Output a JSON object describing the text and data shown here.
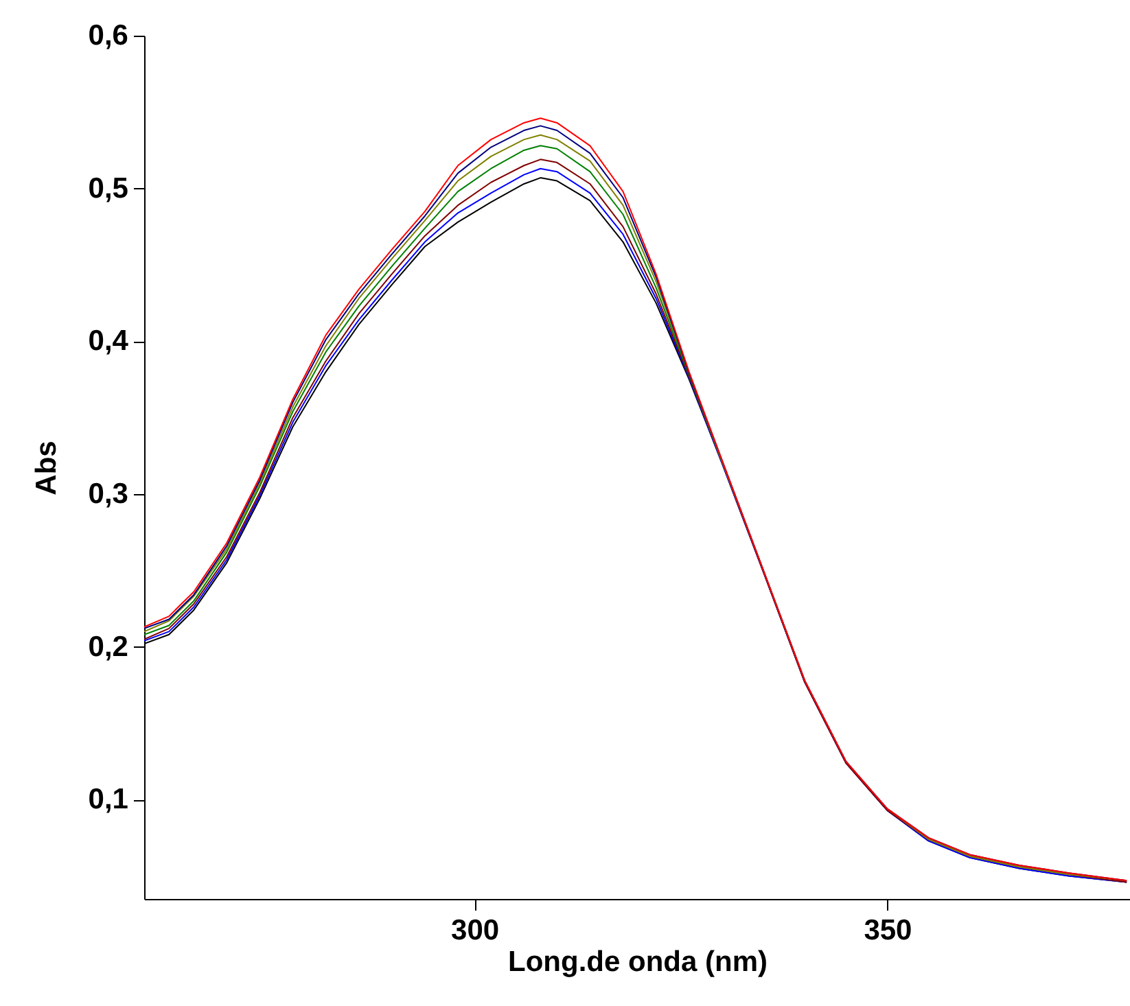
{
  "chart_data": {
    "type": "line",
    "xlabel": "Long.de onda (nm)",
    "ylabel": "Abs",
    "xlim": [
      260,
      379.4
    ],
    "ylim": [
      0.035,
      0.6
    ],
    "xticks": [
      300,
      350
    ],
    "yticks": [
      {
        "value": 0.1,
        "label": "0,1"
      },
      {
        "value": 0.2,
        "label": "0,2"
      },
      {
        "value": 0.3,
        "label": "0,3"
      },
      {
        "value": 0.4,
        "label": "0,4"
      },
      {
        "value": 0.5,
        "label": "0,5"
      },
      {
        "value": 0.6,
        "label": "0,6"
      }
    ],
    "x": [
      260,
      263,
      266,
      270,
      274,
      278,
      282,
      286,
      290,
      294,
      298,
      302,
      306,
      308,
      310,
      314,
      318,
      322,
      326,
      330,
      335,
      340,
      345,
      350,
      355,
      360,
      366,
      372,
      379
    ],
    "series": [
      {
        "color": "#000000",
        "values": [
          0.202,
          0.208,
          0.224,
          0.255,
          0.297,
          0.344,
          0.38,
          0.411,
          0.437,
          0.462,
          0.478,
          0.491,
          0.503,
          0.507,
          0.505,
          0.492,
          0.465,
          0.425,
          0.375,
          0.32,
          0.249,
          0.177,
          0.124,
          0.093,
          0.073,
          0.062,
          0.055,
          0.05,
          0.046
        ]
      },
      {
        "color": "#0000ff",
        "values": [
          0.204,
          0.21,
          0.226,
          0.257,
          0.299,
          0.347,
          0.384,
          0.414,
          0.44,
          0.465,
          0.484,
          0.497,
          0.509,
          0.513,
          0.511,
          0.497,
          0.47,
          0.428,
          0.376,
          0.32,
          0.249,
          0.177,
          0.124,
          0.093,
          0.073,
          0.062,
          0.055,
          0.05,
          0.046
        ]
      },
      {
        "color": "#800000",
        "values": [
          0.205,
          0.212,
          0.228,
          0.259,
          0.301,
          0.35,
          0.387,
          0.418,
          0.444,
          0.469,
          0.489,
          0.504,
          0.515,
          0.519,
          0.517,
          0.503,
          0.475,
          0.431,
          0.377,
          0.321,
          0.249,
          0.177,
          0.124,
          0.093,
          0.074,
          0.063,
          0.056,
          0.051,
          0.046
        ]
      },
      {
        "color": "#008000",
        "values": [
          0.208,
          0.214,
          0.23,
          0.262,
          0.305,
          0.354,
          0.393,
          0.423,
          0.449,
          0.474,
          0.498,
          0.513,
          0.525,
          0.528,
          0.526,
          0.511,
          0.483,
          0.435,
          0.378,
          0.321,
          null,
          null,
          null,
          null,
          null,
          null,
          null,
          null,
          null
        ]
      },
      {
        "color": "#808000",
        "values": [
          0.21,
          0.217,
          0.233,
          0.264,
          0.307,
          0.357,
          0.397,
          0.428,
          0.454,
          0.479,
          0.505,
          0.521,
          0.532,
          0.535,
          0.532,
          0.518,
          0.489,
          0.439,
          0.379,
          0.321,
          0.25,
          0.178,
          0.125,
          0.094,
          0.074,
          0.063,
          0.056,
          0.051,
          0.047
        ]
      },
      {
        "color": "#000080",
        "values": [
          0.212,
          0.218,
          0.234,
          0.266,
          0.309,
          0.36,
          0.401,
          0.431,
          0.457,
          0.482,
          0.51,
          0.527,
          0.538,
          0.541,
          0.538,
          0.523,
          0.494,
          0.442,
          0.379,
          0.322,
          0.25,
          0.178,
          0.125,
          0.094,
          0.075,
          0.064,
          0.057,
          0.052,
          0.047
        ]
      },
      {
        "color": "#ff0000",
        "values": [
          0.213,
          0.22,
          0.236,
          0.268,
          0.311,
          0.362,
          0.404,
          0.434,
          0.46,
          0.485,
          0.515,
          0.532,
          0.543,
          0.546,
          0.543,
          0.528,
          0.498,
          0.444,
          0.38,
          0.322,
          0.25,
          0.178,
          0.125,
          0.094,
          0.075,
          0.064,
          0.057,
          0.052,
          0.047
        ]
      }
    ]
  }
}
